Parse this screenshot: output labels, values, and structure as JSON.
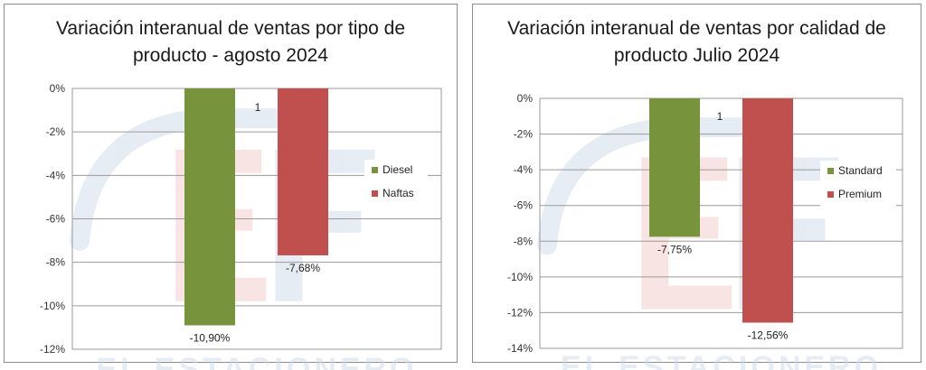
{
  "chart_data": [
    {
      "type": "bar",
      "title": "Variación interanual  de ventas por tipo de\nproducto - agosto 2024",
      "xlabel": "",
      "ylabel": "",
      "categories": [
        "1"
      ],
      "series": [
        {
          "name": "Diesel",
          "values": [
            -10.9
          ],
          "color": "#77933c",
          "label": "-10,90%"
        },
        {
          "name": "Naftas",
          "values": [
            -7.68
          ],
          "color": "#c0504d",
          "label": "-7,68%"
        }
      ],
      "ylim": [
        -12,
        0
      ],
      "yticks": [
        0,
        -2,
        -4,
        -6,
        -8,
        -10,
        -12
      ],
      "ytick_labels": [
        "0%",
        "-2%",
        "-4%",
        "-6%",
        "-8%",
        "-10%",
        "-12%"
      ],
      "grid": true,
      "legend": "right"
    },
    {
      "type": "bar",
      "title": "Variación interanual de ventas por calidad de\nproducto Julio 2024",
      "xlabel": "",
      "ylabel": "",
      "categories": [
        "1"
      ],
      "series": [
        {
          "name": "Standard",
          "values": [
            -7.75
          ],
          "color": "#77933c",
          "label": "-7,75%"
        },
        {
          "name": "Premium",
          "values": [
            -12.56
          ],
          "color": "#c0504d",
          "label": "-12,56%"
        }
      ],
      "ylim": [
        -14,
        0
      ],
      "yticks": [
        0,
        -2,
        -4,
        -6,
        -8,
        -10,
        -12,
        -14
      ],
      "ytick_labels": [
        "0%",
        "-2%",
        "-4%",
        "-6%",
        "-8%",
        "-10%",
        "-12%",
        "-14%"
      ],
      "grid": true,
      "legend": "right"
    }
  ],
  "watermark": {
    "text": "EL ESTACIONERO"
  }
}
